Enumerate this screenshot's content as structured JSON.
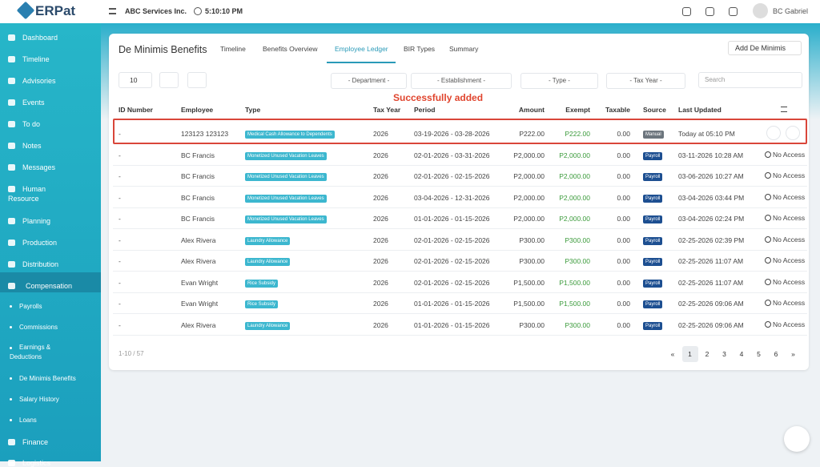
{
  "app": {
    "logo": "ERPat",
    "company": "ABC Services Inc.",
    "time": "5:10:10 PM",
    "user": "BC Gabriel"
  },
  "sidebar": {
    "items": [
      "Dashboard",
      "Timeline",
      "Advisories",
      "Events",
      "To do",
      "Notes",
      "Messages",
      "Human Resource",
      "Planning",
      "Production",
      "Distribution",
      "Compensation"
    ],
    "subitems": [
      "Payrolls",
      "Commissions",
      "Earnings & Deductions",
      "De Minimis Benefits",
      "Salary History",
      "Loans"
    ],
    "after": [
      "Finance",
      "Logistics"
    ]
  },
  "page": {
    "title": "De Minimis Benefits",
    "tabs": [
      "Timeline",
      "Benefits Overview",
      "Employee Ledger",
      "BIR Types",
      "Summary"
    ],
    "active_tab": 2,
    "add_button": "Add De Minimis",
    "page_size": "10",
    "filters": [
      "- Department -",
      "- Establishment -",
      "- Type -",
      "- Tax Year -"
    ],
    "search": "Search",
    "toast": "Successfully added"
  },
  "table": {
    "columns": [
      "ID Number",
      "Employee",
      "Type",
      "Tax Year",
      "Period",
      "Amount",
      "Exempt",
      "Taxable",
      "Source",
      "Last Updated"
    ],
    "rows": [
      {
        "id": "-",
        "employee": "123123 123123",
        "type": "Medical Cash Allowance to Dependents",
        "tax_year": "2026",
        "period": "03-19-2026 - 03-28-2026",
        "amount": "P222.00",
        "exempt": "P222.00",
        "taxable": "0.00",
        "source": "Manual",
        "updated": "Today at 05:10 PM"
      },
      {
        "id": "-",
        "employee": "BC Francis",
        "type": "Monetized Unused Vacation Leaves",
        "tax_year": "2026",
        "period": "02-01-2026 - 03-31-2026",
        "amount": "P2,000.00",
        "exempt": "P2,000.00",
        "taxable": "0.00",
        "source": "Payroll",
        "updated": "03-11-2026 10:28 AM",
        "action": "No Access"
      },
      {
        "id": "-",
        "employee": "BC Francis",
        "type": "Monetized Unused Vacation Leaves",
        "tax_year": "2026",
        "period": "02-01-2026 - 02-15-2026",
        "amount": "P2,000.00",
        "exempt": "P2,000.00",
        "taxable": "0.00",
        "source": "Payroll",
        "updated": "03-06-2026 10:27 AM",
        "action": "No Access"
      },
      {
        "id": "-",
        "employee": "BC Francis",
        "type": "Monetized Unused Vacation Leaves",
        "tax_year": "2026",
        "period": "03-04-2026 - 12-31-2026",
        "amount": "P2,000.00",
        "exempt": "P2,000.00",
        "taxable": "0.00",
        "source": "Payroll",
        "updated": "03-04-2026 03:44 PM",
        "action": "No Access"
      },
      {
        "id": "-",
        "employee": "BC Francis",
        "type": "Monetized Unused Vacation Leaves",
        "tax_year": "2026",
        "period": "01-01-2026 - 01-15-2026",
        "amount": "P2,000.00",
        "exempt": "P2,000.00",
        "taxable": "0.00",
        "source": "Payroll",
        "updated": "03-04-2026 02:24 PM",
        "action": "No Access"
      },
      {
        "id": "-",
        "employee": "Alex Rivera",
        "type": "Laundry Allowance",
        "tax_year": "2026",
        "period": "02-01-2026 - 02-15-2026",
        "amount": "P300.00",
        "exempt": "P300.00",
        "taxable": "0.00",
        "source": "Payroll",
        "updated": "02-25-2026 02:39 PM",
        "action": "No Access"
      },
      {
        "id": "-",
        "employee": "Alex Rivera",
        "type": "Laundry Allowance",
        "tax_year": "2026",
        "period": "02-01-2026 - 02-15-2026",
        "amount": "P300.00",
        "exempt": "P300.00",
        "taxable": "0.00",
        "source": "Payroll",
        "updated": "02-25-2026 11:07 AM",
        "action": "No Access"
      },
      {
        "id": "-",
        "employee": "Evan Wright",
        "type": "Rice Subsidy",
        "tax_year": "2026",
        "period": "02-01-2026 - 02-15-2026",
        "amount": "P1,500.00",
        "exempt": "P1,500.00",
        "taxable": "0.00",
        "source": "Payroll",
        "updated": "02-25-2026 11:07 AM",
        "action": "No Access"
      },
      {
        "id": "-",
        "employee": "Evan Wright",
        "type": "Rice Subsidy",
        "tax_year": "2026",
        "period": "01-01-2026 - 01-15-2026",
        "amount": "P1,500.00",
        "exempt": "P1,500.00",
        "taxable": "0.00",
        "source": "Payroll",
        "updated": "02-25-2026 09:06 AM",
        "action": "No Access"
      },
      {
        "id": "-",
        "employee": "Alex Rivera",
        "type": "Laundry Allowance",
        "tax_year": "2026",
        "period": "01-01-2026 - 01-15-2026",
        "amount": "P300.00",
        "exempt": "P300.00",
        "taxable": "0.00",
        "source": "Payroll",
        "updated": "02-25-2026 09:06 AM",
        "action": "No Access"
      }
    ]
  },
  "footer": {
    "range": "1-10 / 57",
    "pages": [
      "«",
      "1",
      "2",
      "3",
      "4",
      "5",
      "6",
      "»"
    ]
  }
}
